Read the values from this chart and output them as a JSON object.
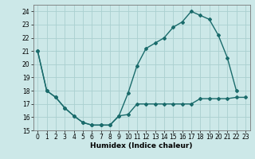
{
  "title": "",
  "xlabel": "Humidex (Indice chaleur)",
  "bg_color": "#cce8e8",
  "grid_color": "#aad0d0",
  "line_color": "#1a6b6b",
  "xlim": [
    -0.5,
    23.5
  ],
  "ylim": [
    15,
    24.5
  ],
  "yticks": [
    15,
    16,
    17,
    18,
    19,
    20,
    21,
    22,
    23,
    24
  ],
  "xticks": [
    0,
    1,
    2,
    3,
    4,
    5,
    6,
    7,
    8,
    9,
    10,
    11,
    12,
    13,
    14,
    15,
    16,
    17,
    18,
    19,
    20,
    21,
    22,
    23
  ],
  "line1_x": [
    0,
    1,
    2,
    3,
    4,
    5,
    6,
    7,
    8,
    9,
    10,
    11,
    12,
    13,
    14,
    15,
    16,
    17,
    18,
    19,
    20,
    21,
    22,
    23
  ],
  "line1_y": [
    21.0,
    18.0,
    17.5,
    16.7,
    16.1,
    15.6,
    15.4,
    15.4,
    15.4,
    16.1,
    16.2,
    17.0,
    17.0,
    17.0,
    17.0,
    17.0,
    17.0,
    17.0,
    17.4,
    17.4,
    17.4,
    17.4,
    17.5,
    17.5
  ],
  "line2_x": [
    0,
    1,
    2,
    3,
    4,
    5,
    6,
    7,
    8,
    9,
    10,
    11,
    12,
    13,
    14,
    15,
    16,
    17,
    18,
    19,
    20,
    21,
    22
  ],
  "line2_y": [
    21.0,
    18.0,
    17.5,
    16.7,
    16.1,
    15.6,
    15.4,
    15.4,
    15.4,
    16.1,
    17.8,
    19.9,
    21.2,
    21.6,
    22.0,
    22.8,
    23.2,
    24.0,
    23.7,
    23.4,
    22.2,
    20.5,
    18.0
  ],
  "marker": "D",
  "markersize": 2.0,
  "linewidth": 1.0,
  "tick_fontsize": 5.5,
  "xlabel_fontsize": 6.5
}
